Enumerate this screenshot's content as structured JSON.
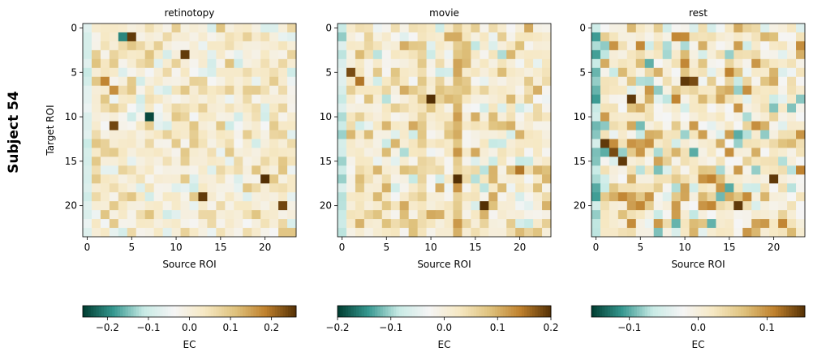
{
  "figure": {
    "suptitle": "Subject 54",
    "cmap_stops": [
      "#003c30",
      "#35978f",
      "#c7eae5",
      "#f5f5f5",
      "#f6e8c3",
      "#dfc27d",
      "#bf812d",
      "#543005"
    ]
  },
  "chart_data": [
    {
      "type": "heatmap",
      "title": "retinotopy",
      "xlabel": "Source ROI",
      "ylabel": "Target ROI",
      "xticks": [
        0,
        5,
        10,
        15,
        20
      ],
      "yticks": [
        0,
        5,
        10,
        15,
        20
      ],
      "n": 24,
      "vmin": -0.26,
      "vmax": 0.26,
      "seed": 11,
      "colorbar": {
        "label": "EC",
        "ticks": [
          -0.2,
          -0.1,
          0.0,
          0.1,
          0.2
        ],
        "tick_labels": [
          "−0.2",
          "−0.1",
          "0.0",
          "0.1",
          "0.2"
        ]
      },
      "hotspots": [
        {
          "row": 1,
          "col": 5,
          "value": 0.25
        },
        {
          "row": 1,
          "col": 4,
          "value": -0.2
        },
        {
          "row": 3,
          "col": 11,
          "value": 0.25
        },
        {
          "row": 6,
          "col": 2,
          "value": 0.18
        },
        {
          "row": 7,
          "col": 3,
          "value": 0.17
        },
        {
          "row": 10,
          "col": 7,
          "value": -0.25
        },
        {
          "row": 11,
          "col": 3,
          "value": 0.24
        },
        {
          "row": 17,
          "col": 20,
          "value": 0.26
        },
        {
          "row": 19,
          "col": 13,
          "value": 0.25
        },
        {
          "row": 20,
          "col": 22,
          "value": 0.24
        }
      ]
    },
    {
      "type": "heatmap",
      "title": "movie",
      "xlabel": "Source ROI",
      "ylabel": "",
      "xticks": [
        0,
        5,
        10,
        15,
        20
      ],
      "yticks": [
        0,
        5,
        10,
        15,
        20
      ],
      "n": 24,
      "vmin": -0.2,
      "vmax": 0.2,
      "seed": 23,
      "colorbar": {
        "label": "EC",
        "ticks": [
          -0.2,
          -0.1,
          0.0,
          0.1,
          0.2
        ],
        "tick_labels": [
          "−0.2",
          "−0.1",
          "0.0",
          "0.1",
          "0.2"
        ]
      },
      "hotspots": [
        {
          "row": 5,
          "col": 1,
          "value": 0.18
        },
        {
          "row": 6,
          "col": 2,
          "value": 0.15
        },
        {
          "row": 8,
          "col": 10,
          "value": 0.2
        },
        {
          "row": 17,
          "col": 13,
          "value": 0.2
        },
        {
          "row": 20,
          "col": 16,
          "value": 0.2
        },
        {
          "row": 16,
          "col": 20,
          "value": 0.15
        }
      ]
    },
    {
      "type": "heatmap",
      "title": "rest",
      "xlabel": "Source ROI",
      "ylabel": "",
      "xticks": [
        0,
        5,
        10,
        15,
        20
      ],
      "yticks": [
        0,
        5,
        10,
        15,
        20
      ],
      "n": 24,
      "vmin": -0.155,
      "vmax": 0.155,
      "seed": 37,
      "colorbar": {
        "label": "EC",
        "ticks": [
          -0.1,
          0.0,
          0.1
        ],
        "tick_labels": [
          "−0.1",
          "0.0",
          "0.1"
        ]
      },
      "hotspots": [
        {
          "row": 6,
          "col": 10,
          "value": 0.15
        },
        {
          "row": 6,
          "col": 11,
          "value": 0.14
        },
        {
          "row": 8,
          "col": 4,
          "value": 0.15
        },
        {
          "row": 13,
          "col": 1,
          "value": 0.15
        },
        {
          "row": 14,
          "col": 2,
          "value": 0.14
        },
        {
          "row": 15,
          "col": 3,
          "value": 0.15
        },
        {
          "row": 17,
          "col": 20,
          "value": 0.15
        },
        {
          "row": 20,
          "col": 16,
          "value": 0.15
        },
        {
          "row": 18,
          "col": 15,
          "value": -0.1
        }
      ]
    }
  ]
}
